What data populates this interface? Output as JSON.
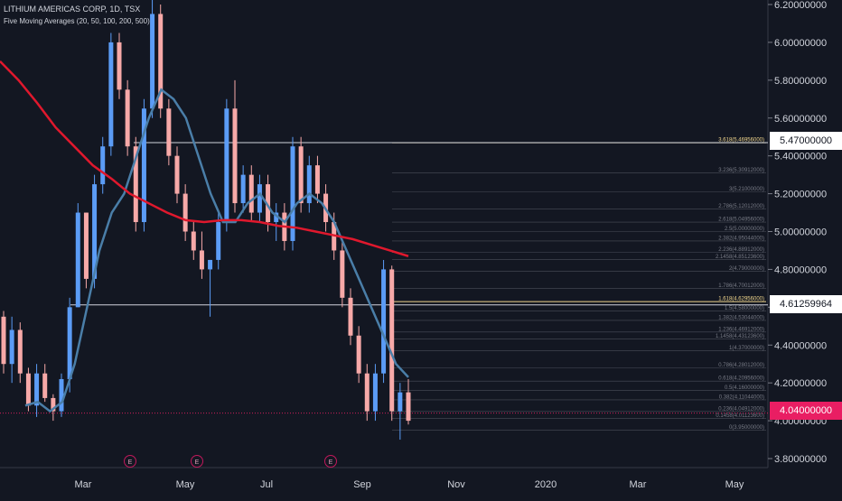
{
  "header": {
    "title": "LITHIUM AMERICAS CORP, 1D, TSX",
    "indicator": "Five Moving Averages (20, 50, 100, 200, 500)"
  },
  "price_tags": {
    "upper": "5.47000000",
    "mid": "4.61259964",
    "last": "4.04000000"
  },
  "colors": {
    "background": "#131722",
    "up_candle": "#5b9cf6",
    "down_candle": "#f7a9a8",
    "ma_short": "#4a7ea8",
    "ma_long": "#e0182d",
    "fib_line": "#787b86",
    "highlight_line": "#f0d58c",
    "last_price": "#e91e63"
  },
  "event_markers": [
    "E",
    "E",
    "E"
  ],
  "chart_data": {
    "type": "candlestick",
    "title": "LITHIUM AMERICAS CORP, 1D, TSX",
    "y_ticks": [
      "6.20000000",
      "6.00000000",
      "5.80000000",
      "5.60000000",
      "5.40000000",
      "5.20000000",
      "5.00000000",
      "4.80000000",
      "4.60000000",
      "4.40000000",
      "4.20000000",
      "4.00000000",
      "3.80000000"
    ],
    "x_ticks": [
      "Mar",
      "May",
      "Jul",
      "Sep",
      "Nov",
      "2020",
      "Mar",
      "May"
    ],
    "ylim": [
      3.75,
      6.24
    ],
    "fib_levels": [
      {
        "label": "3.618(5.46956000)",
        "value": 5.4696
      },
      {
        "label": "3.236(5.30912000)",
        "value": 5.3091
      },
      {
        "label": "3(5.21000000)",
        "value": 5.21
      },
      {
        "label": "2.786(5.12012000)",
        "value": 5.1201
      },
      {
        "label": "2.618(5.04956000)",
        "value": 5.0496
      },
      {
        "label": "2.5(5.00000000)",
        "value": 5.0
      },
      {
        "label": "2.382(4.95044000)",
        "value": 4.9504
      },
      {
        "label": "2.236(4.88912000)",
        "value": 4.8891
      },
      {
        "label": "2.1458(4.85123600)",
        "value": 4.8512
      },
      {
        "label": "2(4.79000000)",
        "value": 4.79
      },
      {
        "label": "1.786(4.70012000)",
        "value": 4.7001
      },
      {
        "label": "1.618(4.62956000)",
        "value": 4.6296
      },
      {
        "label": "1.5(4.58000000)",
        "value": 4.58
      },
      {
        "label": "1.382(4.53044000)",
        "value": 4.5304
      },
      {
        "label": "1.236(4.46912000)",
        "value": 4.4691
      },
      {
        "label": "1.1458(4.43123600)",
        "value": 4.4312
      },
      {
        "label": "1(4.37000000)",
        "value": 4.37
      },
      {
        "label": "0.786(4.28012000)",
        "value": 4.2801
      },
      {
        "label": "0.618(4.20956000)",
        "value": 4.2096
      },
      {
        "label": "0.5(4.16000000)",
        "value": 4.16
      },
      {
        "label": "0.382(4.11044000)",
        "value": 4.1104
      },
      {
        "label": "0.236(4.04912000)",
        "value": 4.0491
      },
      {
        "label": "0.1458(4.01123600)",
        "value": 4.0112
      },
      {
        "label": "0(3.95000000)",
        "value": 3.95
      }
    ],
    "horizontal_lines": [
      5.47,
      4.6126,
      4.04
    ],
    "ma_short": [
      4.08,
      4.1,
      4.05,
      4.1,
      4.3,
      4.6,
      4.9,
      5.1,
      5.2,
      5.4,
      5.6,
      5.75,
      5.7,
      5.6,
      5.4,
      5.2,
      5.05,
      5.05,
      5.15,
      5.2,
      5.1,
      5.05,
      5.15,
      5.2,
      5.15,
      5.05,
      4.9,
      4.75,
      4.6,
      4.45,
      4.3,
      4.23
    ],
    "ma_long": [
      5.9,
      5.8,
      5.68,
      5.55,
      5.45,
      5.35,
      5.28,
      5.2,
      5.15,
      5.1,
      5.06,
      5.05,
      5.06,
      5.06,
      5.05,
      5.03,
      5.02,
      5.0,
      4.98,
      4.96,
      4.93,
      4.9,
      4.87
    ],
    "ohlc": [
      [
        4.55,
        4.58,
        4.25,
        4.3
      ],
      [
        4.3,
        4.55,
        4.2,
        4.48
      ],
      [
        4.48,
        4.52,
        4.2,
        4.25
      ],
      [
        4.25,
        4.28,
        4.05,
        4.08
      ],
      [
        4.08,
        4.3,
        4.02,
        4.25
      ],
      [
        4.25,
        4.3,
        4.1,
        4.12
      ],
      [
        4.12,
        4.14,
        4.0,
        4.05
      ],
      [
        4.05,
        4.25,
        4.02,
        4.22
      ],
      [
        4.22,
        4.65,
        4.15,
        4.6
      ],
      [
        4.6,
        5.15,
        4.6,
        5.1
      ],
      [
        5.1,
        5.1,
        4.7,
        4.75
      ],
      [
        4.75,
        5.3,
        4.7,
        5.25
      ],
      [
        5.25,
        5.5,
        5.2,
        5.45
      ],
      [
        5.45,
        6.05,
        5.4,
        6.0
      ],
      [
        6.0,
        6.05,
        5.7,
        5.75
      ],
      [
        5.75,
        5.8,
        5.4,
        5.45
      ],
      [
        5.45,
        5.5,
        5.0,
        5.05
      ],
      [
        5.05,
        5.7,
        5.0,
        5.65
      ],
      [
        5.65,
        6.24,
        5.6,
        6.15
      ],
      [
        6.15,
        6.2,
        5.6,
        5.65
      ],
      [
        5.65,
        5.7,
        5.35,
        5.4
      ],
      [
        5.4,
        5.45,
        5.15,
        5.2
      ],
      [
        5.2,
        5.25,
        4.95,
        5.0
      ],
      [
        5.0,
        5.05,
        4.85,
        4.9
      ],
      [
        4.9,
        5.0,
        4.75,
        4.8
      ],
      [
        4.8,
        4.85,
        4.55,
        4.85
      ],
      [
        4.85,
        5.1,
        4.8,
        5.05
      ],
      [
        5.05,
        5.7,
        5.0,
        5.65
      ],
      [
        5.65,
        5.8,
        5.1,
        5.15
      ],
      [
        5.15,
        5.35,
        5.1,
        5.3
      ],
      [
        5.3,
        5.35,
        5.05,
        5.1
      ],
      [
        5.1,
        5.3,
        5.05,
        5.25
      ],
      [
        5.25,
        5.3,
        5.0,
        5.05
      ],
      [
        5.05,
        5.15,
        4.95,
        5.1
      ],
      [
        5.1,
        5.15,
        4.9,
        4.95
      ],
      [
        4.95,
        5.5,
        4.9,
        5.45
      ],
      [
        5.45,
        5.5,
        5.1,
        5.15
      ],
      [
        5.15,
        5.4,
        5.1,
        5.35
      ],
      [
        5.35,
        5.4,
        5.15,
        5.2
      ],
      [
        5.2,
        5.25,
        5.0,
        5.05
      ],
      [
        5.05,
        5.1,
        4.85,
        4.9
      ],
      [
        4.9,
        4.95,
        4.6,
        4.65
      ],
      [
        4.65,
        4.7,
        4.4,
        4.45
      ],
      [
        4.45,
        4.5,
        4.2,
        4.25
      ],
      [
        4.25,
        4.3,
        4.0,
        4.05
      ],
      [
        4.05,
        4.3,
        4.0,
        4.25
      ],
      [
        4.25,
        4.85,
        4.2,
        4.8
      ],
      [
        4.8,
        4.82,
        4.0,
        4.05
      ],
      [
        4.05,
        4.2,
        3.9,
        4.15
      ],
      [
        4.15,
        4.22,
        3.98,
        4.0
      ]
    ]
  }
}
